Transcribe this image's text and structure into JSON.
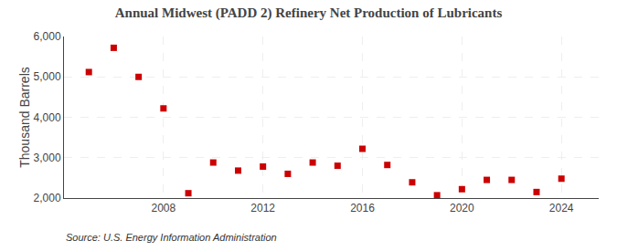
{
  "chart_data": {
    "type": "scatter",
    "title": "Annual Midwest (PADD 2) Refinery Net Production of Lubricants",
    "ylabel": "Thousand Barrels",
    "annotations": [
      "Source: U.S. Energy Information Administration"
    ],
    "x": [
      2005,
      2006,
      2007,
      2008,
      2009,
      2010,
      2011,
      2012,
      2013,
      2014,
      2015,
      2016,
      2017,
      2018,
      2019,
      2020,
      2021,
      2022,
      2023,
      2024
    ],
    "values": [
      5120,
      5720,
      5000,
      4220,
      2120,
      2880,
      2680,
      2780,
      2600,
      2880,
      2800,
      3220,
      2820,
      2390,
      2070,
      2220,
      2450,
      2450,
      2150,
      2480
    ],
    "color": "#cc0000",
    "marker": "square",
    "xlim": [
      2004.0,
      2025.5
    ],
    "ylim": [
      2000,
      6000
    ],
    "xticks": [
      2008,
      2012,
      2016,
      2020,
      2024
    ],
    "yticks": [
      {
        "value": 2000,
        "label": "2,000"
      },
      {
        "value": 3000,
        "label": "3,000"
      },
      {
        "value": 4000,
        "label": "4,000"
      },
      {
        "value": 5000,
        "label": "5,000"
      },
      {
        "value": 6000,
        "label": "6,000"
      }
    ],
    "grid": true
  }
}
